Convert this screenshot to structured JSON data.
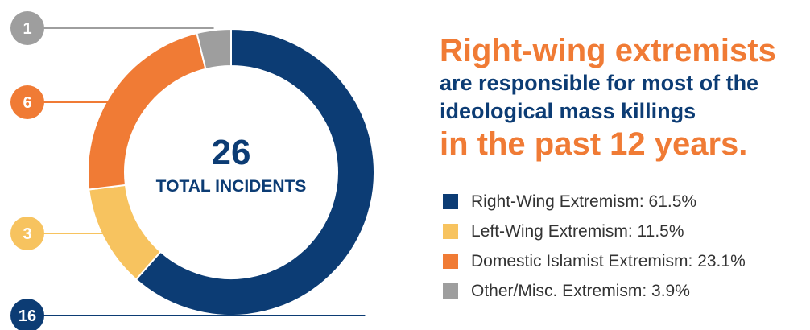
{
  "chart_data": {
    "type": "pie",
    "center_value": "26",
    "center_label": "TOTAL INCIDENTS",
    "slices": [
      {
        "name": "Right-Wing Extremism",
        "value": 16,
        "percent": 61.5,
        "color": "#0c3c74"
      },
      {
        "name": "Left-Wing Extremism",
        "value": 3,
        "percent": 11.5,
        "color": "#f7c35f"
      },
      {
        "name": "Domestic Islamist Extremism",
        "value": 6,
        "percent": 23.1,
        "color": "#f07b35"
      },
      {
        "name": "Other/Misc. Extremism",
        "value": 1,
        "percent": 3.9,
        "color": "#9e9e9e"
      }
    ]
  },
  "headline": {
    "line1": "Right-wing extremists",
    "line2": "are responsible for most of the",
    "line3": "ideological mass killings",
    "line4": "in the past 12 years."
  },
  "legend": [
    {
      "label": "Right-Wing Extremism:  61.5%",
      "color": "#0c3c74"
    },
    {
      "label": "Left-Wing Extremism:  11.5%",
      "color": "#f7c35f"
    },
    {
      "label": "Domestic Islamist Extremism: 23.1%",
      "color": "#f07b35"
    },
    {
      "label": "Other/Misc. Extremism: 3.9%",
      "color": "#9e9e9e"
    }
  ],
  "callouts": [
    {
      "value": "1",
      "color": "#9e9e9e"
    },
    {
      "value": "6",
      "color": "#f07b35"
    },
    {
      "value": "3",
      "color": "#f7c35f"
    },
    {
      "value": "16",
      "color": "#0c3c74"
    }
  ]
}
